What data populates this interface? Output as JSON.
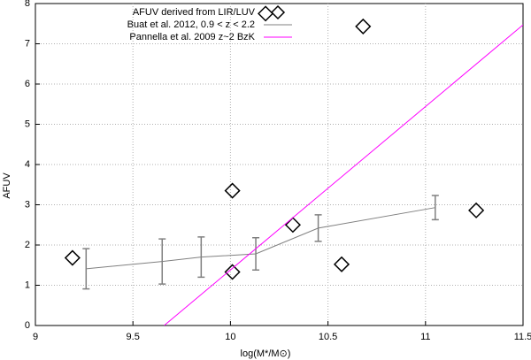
{
  "chart_data": {
    "type": "scatter",
    "x_label": "log(M*/M⊙)",
    "y_label": "AFUV",
    "xlim": [
      9,
      11.5
    ],
    "ylim": [
      0,
      8
    ],
    "xticks": [
      9,
      9.5,
      10,
      10.5,
      11,
      11.5
    ],
    "yticks": [
      0,
      1,
      2,
      3,
      4,
      5,
      6,
      7,
      8
    ],
    "grid": true,
    "legend": "top-right",
    "series": [
      {
        "name": "AFUV derived from LIR/LUV",
        "type": "scatter",
        "color": "#000000",
        "x": [
          9.19,
          10.01,
          10.01,
          10.18,
          10.32,
          10.57,
          10.68,
          11.26
        ],
        "values": [
          1.68,
          3.35,
          1.33,
          7.75,
          2.5,
          1.52,
          7.43,
          2.86
        ]
      },
      {
        "name": "Buat et al. 2012,  0.9 < z < 2.2",
        "type": "errorline",
        "color": "#808080",
        "x": [
          9.26,
          9.65,
          9.85,
          10.13,
          10.45,
          11.05
        ],
        "values": [
          1.41,
          1.59,
          1.7,
          1.78,
          2.42,
          2.93
        ],
        "errors": [
          0.5,
          0.56,
          0.5,
          0.4,
          0.33,
          0.3
        ]
      },
      {
        "name": "Pannella et al. 2009 z~2 BzK",
        "type": "line",
        "color": "#ff00ff",
        "x": [
          9.66,
          11.5
        ],
        "values": [
          0,
          7.47
        ]
      }
    ]
  }
}
